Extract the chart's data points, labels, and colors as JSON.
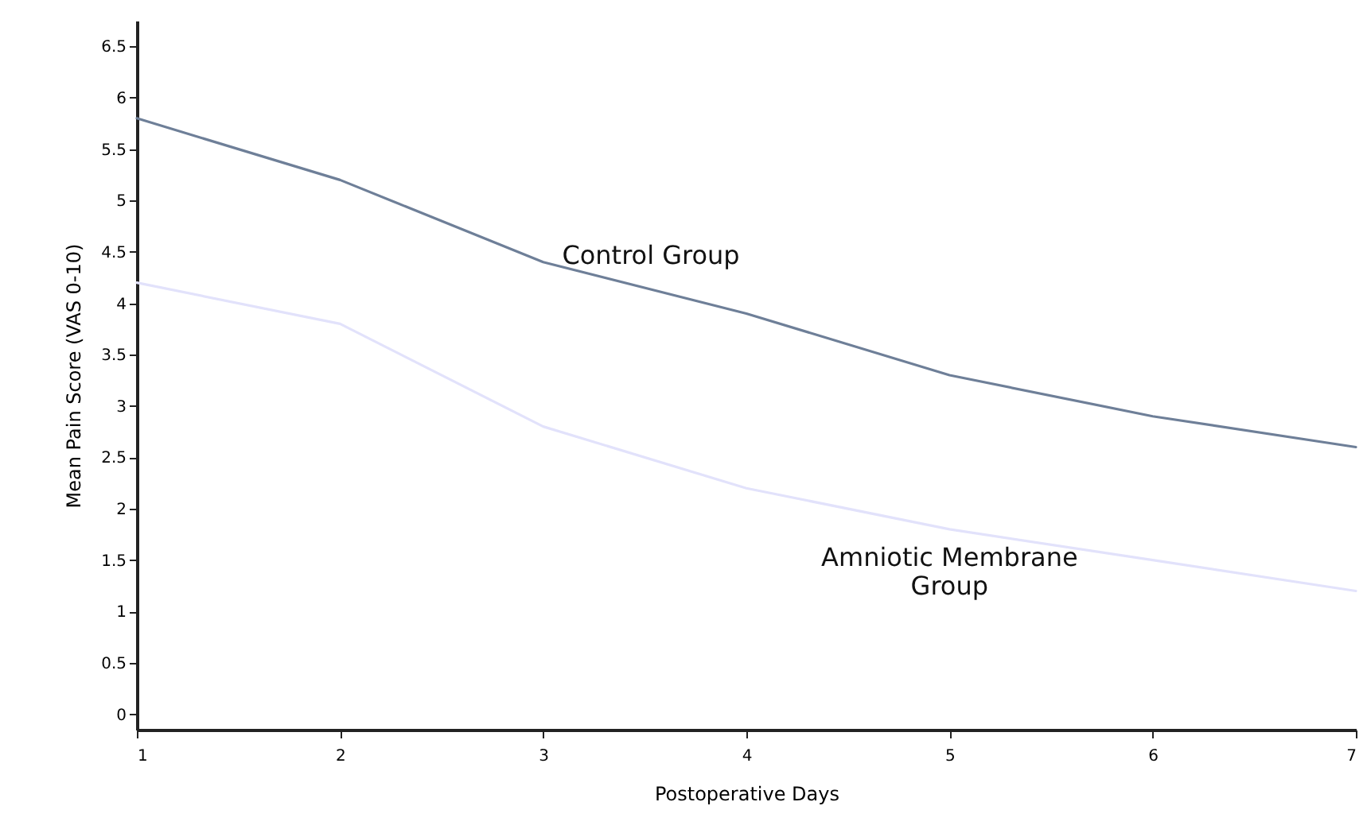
{
  "chart_data": {
    "type": "line",
    "xlabel": "Postoperative Days",
    "ylabel": "Mean Pain Score (VAS 0-10)",
    "x": [
      1,
      2,
      3,
      4,
      5,
      6,
      7
    ],
    "series": [
      {
        "name": "Control Group",
        "color": "#6e7f98",
        "values": [
          5.8,
          5.2,
          4.4,
          3.9,
          3.3,
          2.9,
          2.6
        ]
      },
      {
        "name": "Amniotic Membrane\nGroup",
        "color": "#e2e2fb",
        "values": [
          4.2,
          3.8,
          2.8,
          2.2,
          1.8,
          1.5,
          1.2
        ]
      }
    ],
    "xlim": [
      1,
      7
    ],
    "xticks": [
      1,
      2,
      3,
      4,
      5,
      6,
      7
    ],
    "ylim": [
      -0.15,
      6.75
    ],
    "yticks": [
      0,
      0.5,
      1,
      1.5,
      2,
      2.5,
      3,
      3.5,
      4,
      4.5,
      5,
      5.5,
      6,
      6.5
    ],
    "grid": false,
    "marker": "none",
    "line_style": "solid"
  }
}
